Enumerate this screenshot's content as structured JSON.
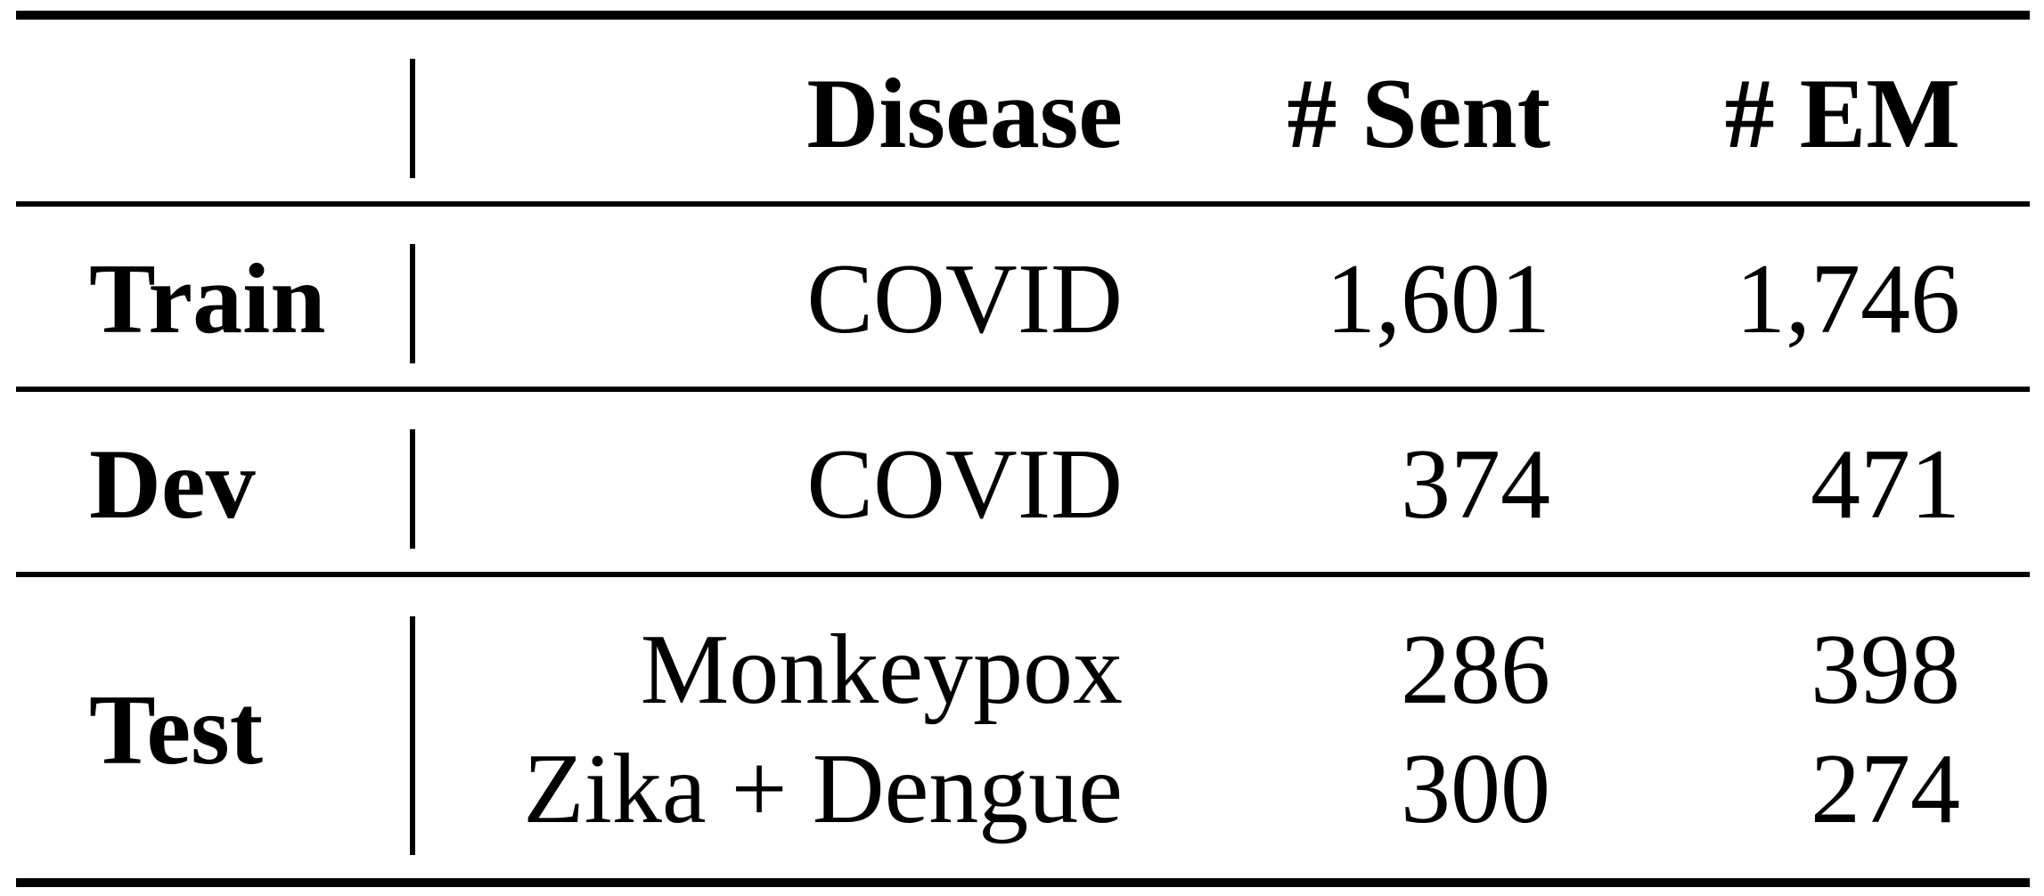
{
  "table": {
    "headers": {
      "split": "",
      "disease": "Disease",
      "sent": "# Sent",
      "em": "# EM"
    },
    "rows": [
      {
        "split": "Train",
        "entries": [
          {
            "disease": "COVID",
            "sent": "1,601",
            "em": "1,746"
          }
        ]
      },
      {
        "split": "Dev",
        "entries": [
          {
            "disease": "COVID",
            "sent": "374",
            "em": "471"
          }
        ]
      },
      {
        "split": "Test",
        "entries": [
          {
            "disease": "Monkeypox",
            "sent": "286",
            "em": "398"
          },
          {
            "disease": "Zika + Dengue",
            "sent": "300",
            "em": "274"
          }
        ]
      }
    ]
  }
}
